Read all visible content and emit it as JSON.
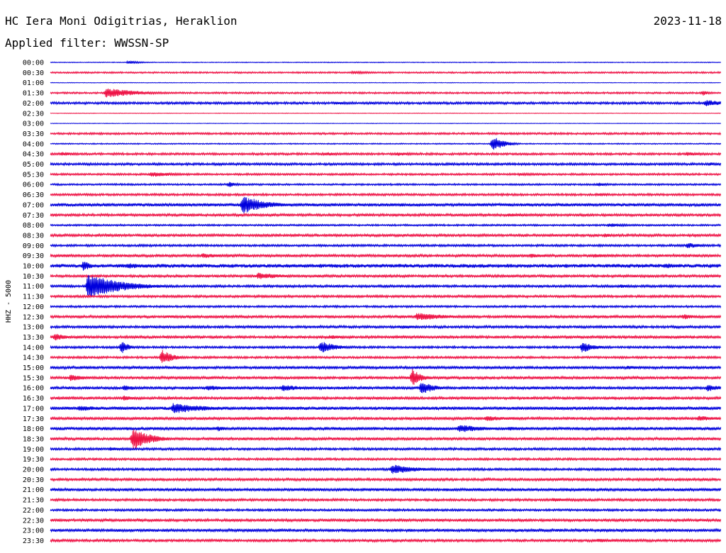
{
  "header": {
    "station": "HC Iera Moni Odigitrias, Heraklion",
    "date": "2023-11-18",
    "filter_label": "Applied filter:",
    "filter_name": "WWSSN-SP"
  },
  "chart_data": {
    "type": "line",
    "title": "HC Iera Moni Odigitrias, Heraklion",
    "ylabel": "HHZ - 5000",
    "row_labels": [
      "00:00",
      "00:30",
      "01:00",
      "01:30",
      "02:00",
      "02:30",
      "03:00",
      "03:30",
      "04:00",
      "04:30",
      "05:00",
      "05:30",
      "06:00",
      "06:30",
      "07:00",
      "07:30",
      "08:00",
      "08:30",
      "09:00",
      "09:30",
      "10:00",
      "10:30",
      "11:00",
      "11:30",
      "12:00",
      "12:30",
      "13:00",
      "13:30",
      "14:00",
      "14:30",
      "15:00",
      "15:30",
      "16:00",
      "16:30",
      "17:00",
      "17:30",
      "18:00",
      "18:30",
      "19:00",
      "19:30",
      "20:00",
      "20:30",
      "21:00",
      "21:30",
      "22:00",
      "22:30",
      "23:00",
      "23:30"
    ],
    "trace_colors": [
      "#0000dd",
      "#ee1144"
    ],
    "noise_levels": [
      0.4,
      0.8,
      0.3,
      0.9,
      1.2,
      0.3,
      0.3,
      1.0,
      0.6,
      1.1,
      1.2,
      1.0,
      0.9,
      1.1,
      1.6,
      1.3,
      0.9,
      1.3,
      1.1,
      1.4,
      1.9,
      1.3,
      1.2,
      1.2,
      1.0,
      1.4,
      1.3,
      1.3,
      1.1,
      1.1,
      1.4,
      1.4,
      1.4,
      1.3,
      1.6,
      1.4,
      1.6,
      1.4,
      1.2,
      1.1,
      1.2,
      1.3,
      1.5,
      1.2,
      1.1,
      1.3,
      1.4,
      1.3
    ],
    "events": [
      {
        "row": 0,
        "minute": 3.5,
        "amp": 2.5,
        "dur": 0.6
      },
      {
        "row": 1,
        "minute": 13.5,
        "amp": 2,
        "dur": 1.5
      },
      {
        "row": 3,
        "minute": 2.5,
        "amp": 7,
        "dur": 1.5
      },
      {
        "row": 3,
        "minute": 29.2,
        "amp": 4,
        "dur": 0.3
      },
      {
        "row": 4,
        "minute": 12.8,
        "amp": 2.5,
        "dur": 1
      },
      {
        "row": 4,
        "minute": 29.3,
        "amp": 5,
        "dur": 1
      },
      {
        "row": 8,
        "minute": 19.8,
        "amp": 11,
        "dur": 0.5
      },
      {
        "row": 9,
        "minute": 0.5,
        "amp": 3,
        "dur": 1
      },
      {
        "row": 9,
        "minute": 12.3,
        "amp": 3,
        "dur": 0.8
      },
      {
        "row": 9,
        "minute": 15.5,
        "amp": 3,
        "dur": 0.8
      },
      {
        "row": 9,
        "minute": 28.5,
        "amp": 3,
        "dur": 0.8
      },
      {
        "row": 10,
        "minute": 29.5,
        "amp": 3,
        "dur": 0.4
      },
      {
        "row": 11,
        "minute": 4.5,
        "amp": 4,
        "dur": 1.2
      },
      {
        "row": 11,
        "minute": 21,
        "amp": 2,
        "dur": 1.5
      },
      {
        "row": 12,
        "minute": 8,
        "amp": 4,
        "dur": 0.4
      },
      {
        "row": 12,
        "minute": 24.5,
        "amp": 3,
        "dur": 0.6
      },
      {
        "row": 13,
        "minute": 24.5,
        "amp": 2.5,
        "dur": 0.8
      },
      {
        "row": 14,
        "minute": 8.6,
        "amp": 14,
        "dur": 1
      },
      {
        "row": 15,
        "minute": 20.5,
        "amp": 2.5,
        "dur": 1.2
      },
      {
        "row": 16,
        "minute": 25,
        "amp": 3,
        "dur": 1
      },
      {
        "row": 17,
        "minute": 24.8,
        "amp": 3,
        "dur": 0.5
      },
      {
        "row": 18,
        "minute": 18.5,
        "amp": 2.5,
        "dur": 0.4
      },
      {
        "row": 18,
        "minute": 28.5,
        "amp": 4,
        "dur": 0.8
      },
      {
        "row": 19,
        "minute": 6.8,
        "amp": 3.5,
        "dur": 1.2
      },
      {
        "row": 19,
        "minute": 21.5,
        "amp": 3,
        "dur": 1.2
      },
      {
        "row": 19,
        "minute": 24.3,
        "amp": 3,
        "dur": 1
      },
      {
        "row": 20,
        "minute": 1.5,
        "amp": 9,
        "dur": 0.3
      },
      {
        "row": 20,
        "minute": 3.5,
        "amp": 4,
        "dur": 1.2
      },
      {
        "row": 20,
        "minute": 27.5,
        "amp": 4,
        "dur": 0.8
      },
      {
        "row": 21,
        "minute": 9.3,
        "amp": 5,
        "dur": 1.2
      },
      {
        "row": 22,
        "minute": 1.7,
        "amp": 18,
        "dur": 1.5
      },
      {
        "row": 22,
        "minute": 25.5,
        "amp": 2.5,
        "dur": 0.8
      },
      {
        "row": 25,
        "minute": 16.4,
        "amp": 6,
        "dur": 1.5
      },
      {
        "row": 25,
        "minute": 28.3,
        "amp": 4,
        "dur": 0.8
      },
      {
        "row": 26,
        "minute": 15.8,
        "amp": 3,
        "dur": 0.8
      },
      {
        "row": 27,
        "minute": 0.2,
        "amp": 6,
        "dur": 0.5
      },
      {
        "row": 27,
        "minute": 12.5,
        "amp": 3,
        "dur": 1
      },
      {
        "row": 28,
        "minute": 3.2,
        "amp": 10,
        "dur": 0.3
      },
      {
        "row": 28,
        "minute": 12.1,
        "amp": 9,
        "dur": 0.7
      },
      {
        "row": 28,
        "minute": 23.8,
        "amp": 8,
        "dur": 0.6
      },
      {
        "row": 29,
        "minute": 5,
        "amp": 11,
        "dur": 0.5
      },
      {
        "row": 30,
        "minute": 25.8,
        "amp": 3,
        "dur": 0.8
      },
      {
        "row": 31,
        "minute": 0.9,
        "amp": 5,
        "dur": 0.8
      },
      {
        "row": 31,
        "minute": 16.2,
        "amp": 13,
        "dur": 0.4
      },
      {
        "row": 32,
        "minute": 3.3,
        "amp": 4,
        "dur": 0.8
      },
      {
        "row": 32,
        "minute": 7,
        "amp": 4,
        "dur": 1.2
      },
      {
        "row": 32,
        "minute": 10.4,
        "amp": 5,
        "dur": 1
      },
      {
        "row": 32,
        "minute": 16.6,
        "amp": 10,
        "dur": 0.6
      },
      {
        "row": 32,
        "minute": 29.4,
        "amp": 5,
        "dur": 0.8
      },
      {
        "row": 33,
        "minute": 3.3,
        "amp": 4,
        "dur": 0.5
      },
      {
        "row": 33,
        "minute": 26.8,
        "amp": 3,
        "dur": 0.5
      },
      {
        "row": 34,
        "minute": 1.3,
        "amp": 4,
        "dur": 1.2
      },
      {
        "row": 34,
        "minute": 5.5,
        "amp": 8,
        "dur": 1.5
      },
      {
        "row": 34,
        "minute": 26.8,
        "amp": 3,
        "dur": 0.6
      },
      {
        "row": 35,
        "minute": 19.5,
        "amp": 4,
        "dur": 1.2
      },
      {
        "row": 35,
        "minute": 29,
        "amp": 4,
        "dur": 1
      },
      {
        "row": 36,
        "minute": 7.5,
        "amp": 4,
        "dur": 0.5
      },
      {
        "row": 36,
        "minute": 18.3,
        "amp": 6,
        "dur": 1.2
      },
      {
        "row": 36,
        "minute": 20.5,
        "amp": 3,
        "dur": 1
      },
      {
        "row": 37,
        "minute": 3.7,
        "amp": 16,
        "dur": 0.8
      },
      {
        "row": 38,
        "minute": 2.7,
        "amp": 3,
        "dur": 0.8
      },
      {
        "row": 40,
        "minute": 15.3,
        "amp": 7,
        "dur": 1.2
      },
      {
        "row": 43,
        "minute": 22.5,
        "amp": 3,
        "dur": 1
      },
      {
        "row": 47,
        "minute": 24.5,
        "amp": 3,
        "dur": 0.6
      }
    ]
  }
}
